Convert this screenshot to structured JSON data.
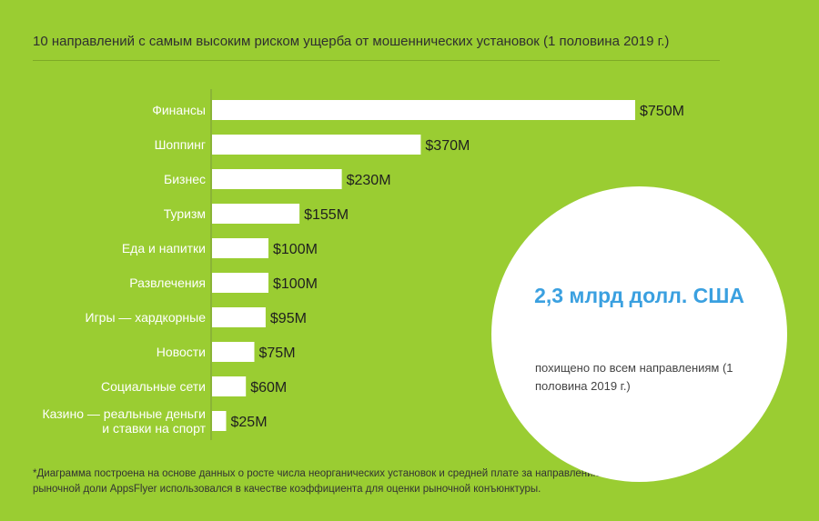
{
  "title": "10 направлений с самым высоким риском ущерба от мошеннических установок (1 половина 2019 г.)",
  "chart_data": {
    "type": "bar",
    "orientation": "horizontal",
    "title": "10 направлений с самым высоким риском ущерба от мошеннических установок (1 половина 2019 г.)",
    "categories": [
      [
        "Финансы"
      ],
      [
        "Шоппинг"
      ],
      [
        "Бизнес"
      ],
      [
        "Туризм"
      ],
      [
        "Еда и напитки"
      ],
      [
        "Развлечения"
      ],
      [
        "Игры — хардкорные"
      ],
      [
        "Новости"
      ],
      [
        "Социальные сети"
      ],
      [
        "Казино — реальные деньги",
        "и ставки на спорт"
      ]
    ],
    "values": [
      750,
      370,
      230,
      155,
      100,
      100,
      95,
      75,
      60,
      25
    ],
    "value_labels": [
      "$750M",
      "$370M",
      "$230M",
      "$155M",
      "$100M",
      "$100M",
      "$95M",
      "$75M",
      "$60M",
      "$25M"
    ],
    "unit": "млн долл.",
    "xlim": [
      0,
      750
    ],
    "grid": false,
    "colors": {
      "bar": "#ffffff",
      "axis": "#7a9a3a"
    }
  },
  "highlight": {
    "total": "2,3 млрд долл. США",
    "description": "похищено по всем направлениям (1 половина 2019 г.)"
  },
  "footnote": "*Диаграмма построена на основе данных о росте числа неорганических установок и средней плате за направлению. Показатель рыночной доли AppsFlyer использовался в качестве коэффициента для оценки рыночной конъюнктуры."
}
